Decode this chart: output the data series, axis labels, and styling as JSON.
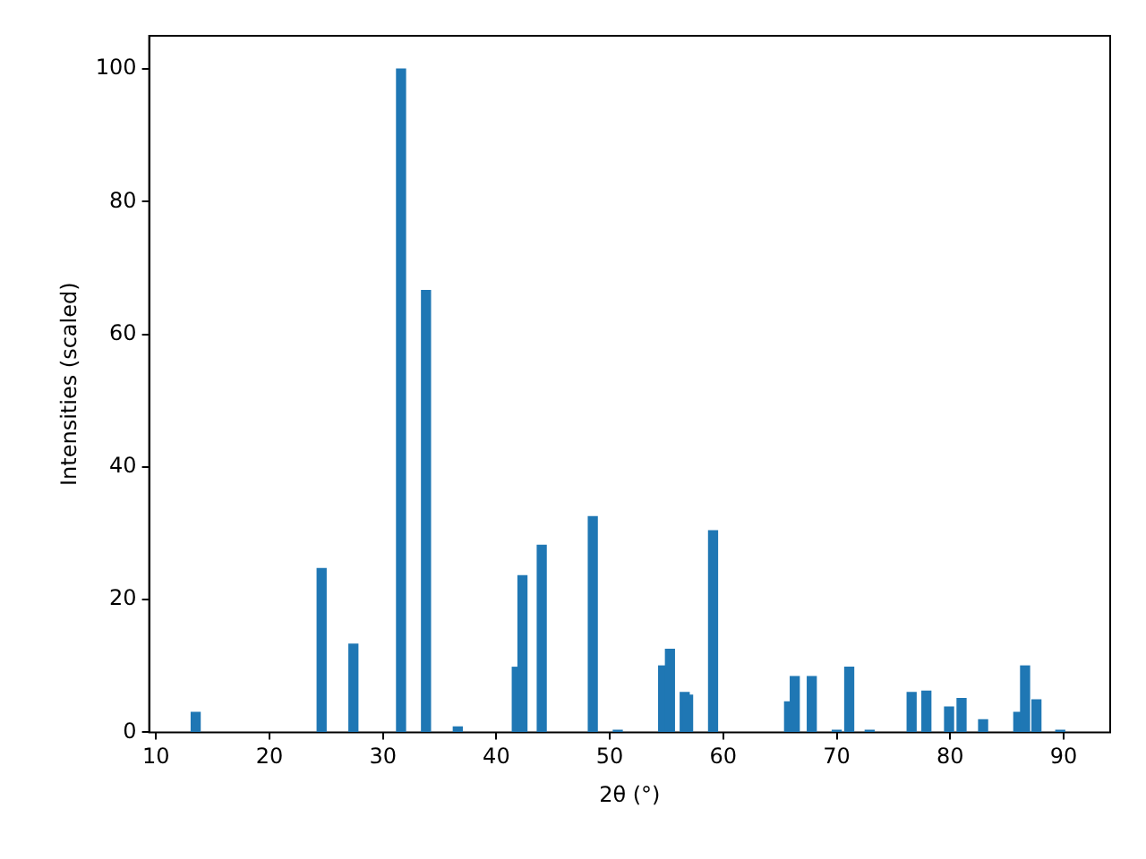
{
  "chart_data": {
    "type": "bar",
    "xlabel": "2θ (°)",
    "ylabel": "Intensities (scaled)",
    "x": [
      13.5,
      24.6,
      27.4,
      31.6,
      33.8,
      36.6,
      41.8,
      42.3,
      44.0,
      48.5,
      50.7,
      54.7,
      55.3,
      56.6,
      56.9,
      59.1,
      65.8,
      66.3,
      67.8,
      70.0,
      71.1,
      72.9,
      76.6,
      77.9,
      79.9,
      81.0,
      82.9,
      86.0,
      86.6,
      87.6,
      89.7
    ],
    "values": [
      3.0,
      24.7,
      13.3,
      100,
      66.6,
      0.8,
      9.8,
      23.6,
      28.2,
      32.5,
      0.3,
      10.0,
      12.5,
      6.0,
      5.6,
      30.4,
      4.6,
      8.4,
      8.4,
      0.3,
      9.8,
      0.3,
      6.0,
      6.2,
      3.8,
      5.1,
      1.9,
      3.0,
      10.0,
      4.9,
      0.3
    ],
    "color": "#1f77b4",
    "xlim": [
      9.4,
      94.1
    ],
    "xticks": [
      10,
      20,
      30,
      40,
      50,
      60,
      70,
      80,
      90
    ],
    "ylim": [
      0,
      105
    ],
    "yticks": [
      0,
      20,
      40,
      60,
      80,
      100
    ],
    "grid": false,
    "legend": false
  }
}
